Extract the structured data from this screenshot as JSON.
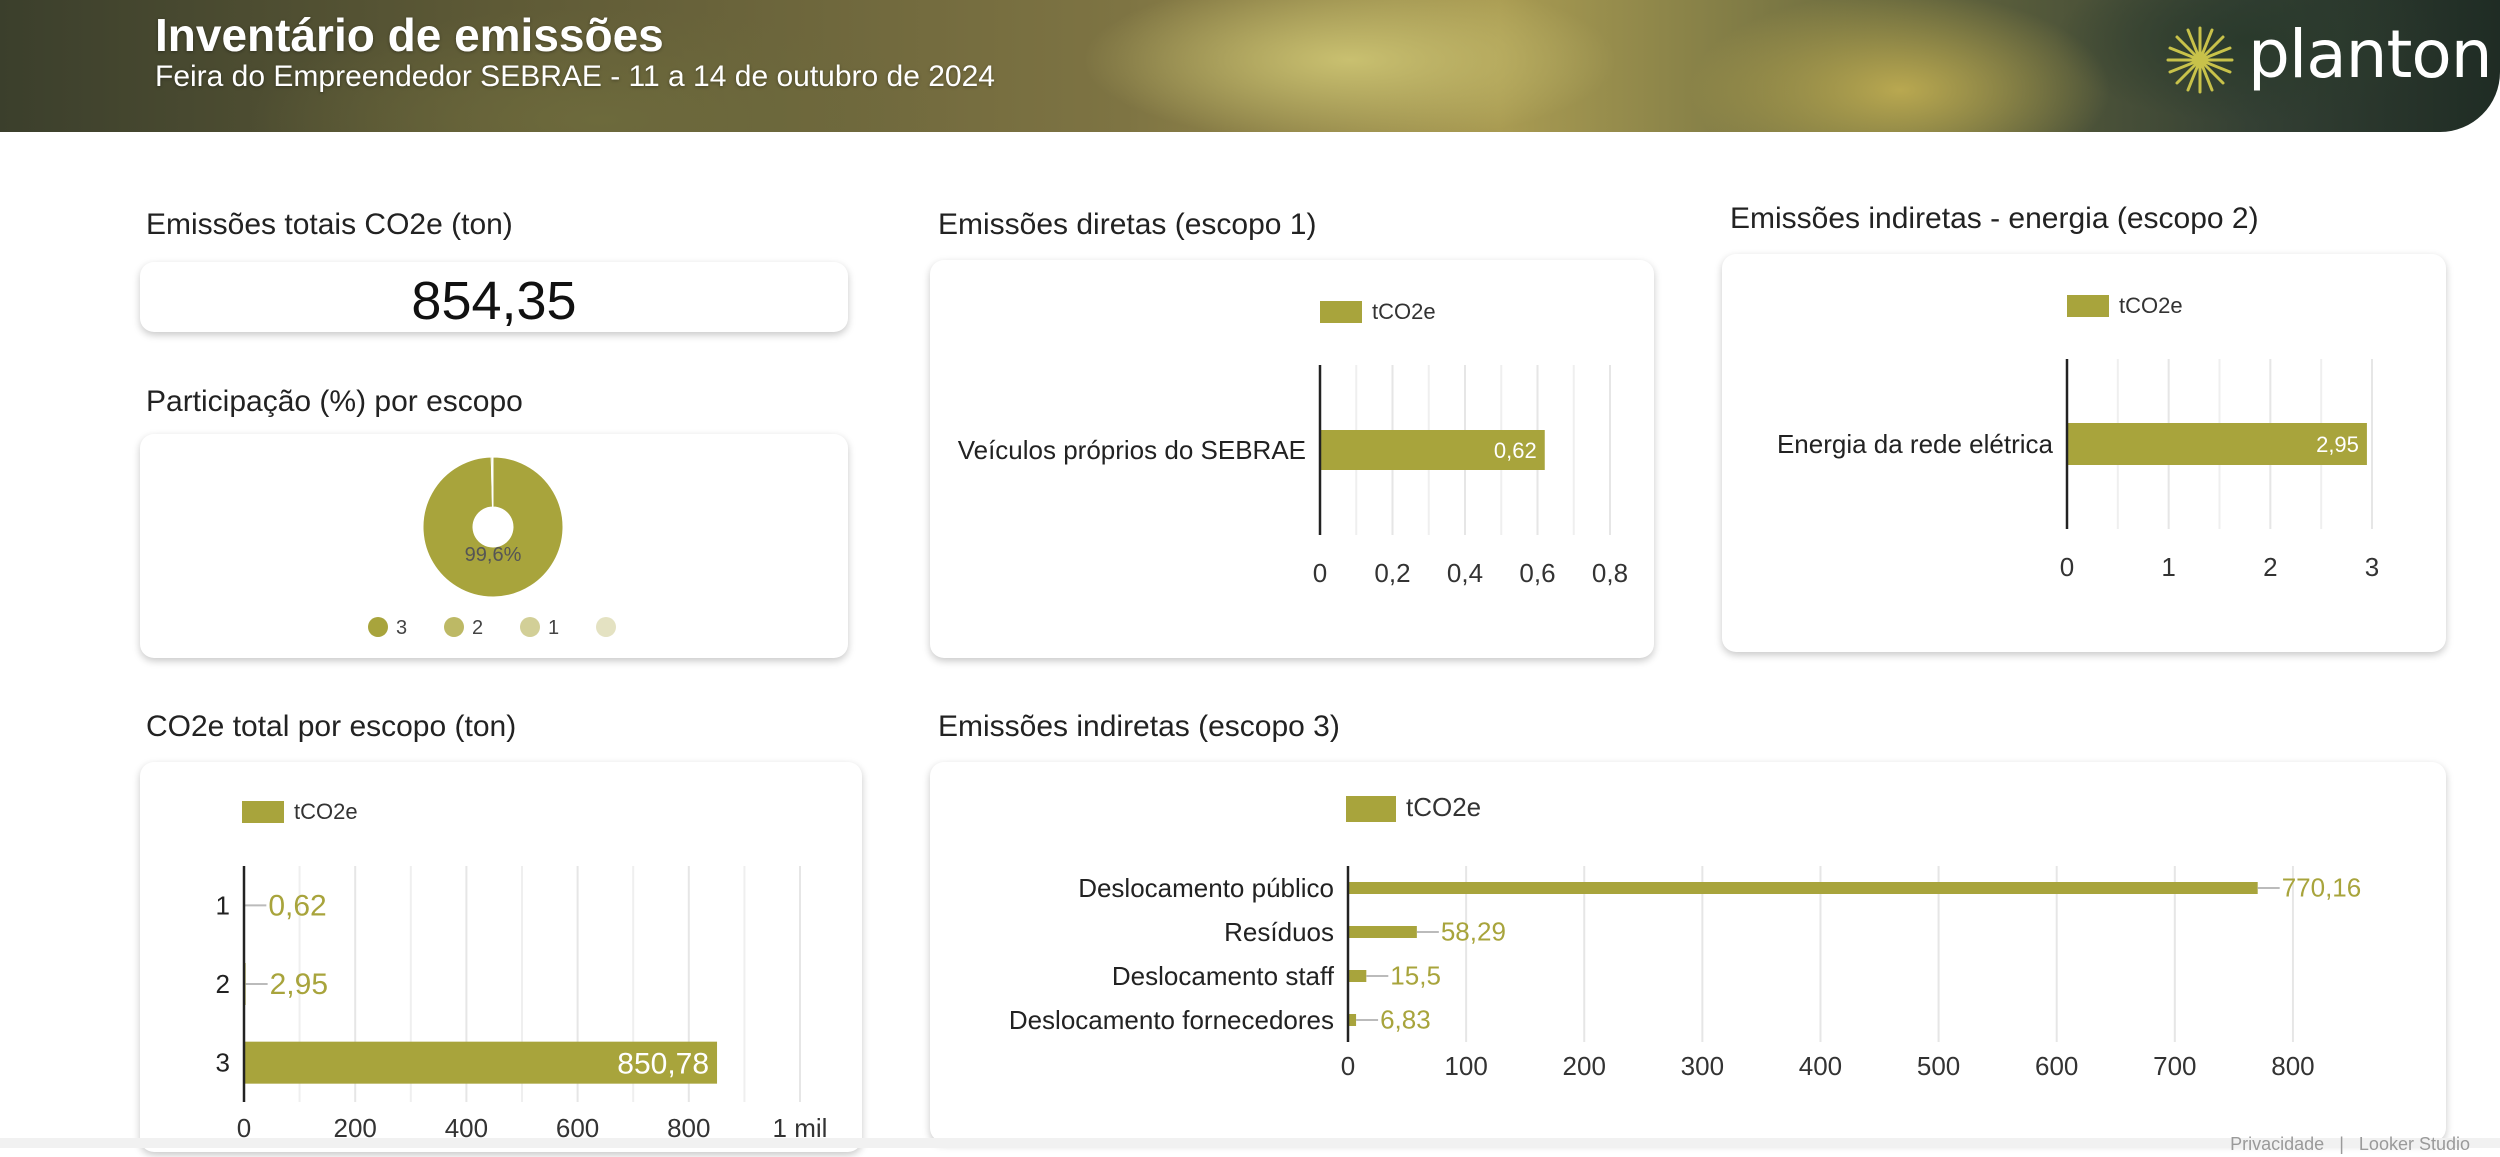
{
  "header": {
    "title": "Inventário de emissões",
    "subtitle": "Feira do Empreendedor SEBRAE  -  11 a 14 de outubro de 2024",
    "logo_text": "planton"
  },
  "colors": {
    "bar": "#a8a43c",
    "bar_dark": "#a6a23a",
    "label_outside": "#a8a43c"
  },
  "total": {
    "title": "Emissões totais CO2e (ton)",
    "value": "854,35"
  },
  "participation": {
    "title": "Participação (%) por escopo",
    "center_label": "99,6%",
    "slices": [
      {
        "label": "3",
        "value": 99.6,
        "color": "#a8a43c"
      },
      {
        "label": "2",
        "value": 0.3,
        "color": "#bdb965"
      },
      {
        "label": "1",
        "value": 0.1,
        "color": "#d2cf97"
      },
      {
        "label": "",
        "value": 0,
        "color": "#e4e2c2"
      }
    ]
  },
  "scope1": {
    "title": "Emissões diretas (escopo 1)"
  },
  "scope2": {
    "title": "Emissões indiretas - energia (escopo 2)"
  },
  "scope_total": {
    "title": "CO2e total por escopo (ton)"
  },
  "scope3": {
    "title": "Emissões indiretas (escopo 3)"
  },
  "footer": {
    "privacy": "Privacidade",
    "brand": "Looker Studio"
  },
  "chart_data": [
    {
      "id": "scope1",
      "type": "bar",
      "orientation": "horizontal",
      "series": [
        {
          "name": "tCO2e",
          "values": [
            0.62
          ]
        }
      ],
      "categories": [
        "Veículos próprios do SEBRAE"
      ],
      "data_labels": [
        "0,62"
      ],
      "xlim": [
        0,
        0.8
      ],
      "ticks": [
        0,
        0.2,
        0.4,
        0.6,
        0.8
      ],
      "tick_labels": [
        "0",
        "0,2",
        "0,4",
        "0,6",
        "0,8"
      ],
      "label_inside": true,
      "legend": "top"
    },
    {
      "id": "scope2",
      "type": "bar",
      "orientation": "horizontal",
      "series": [
        {
          "name": "tCO2e",
          "values": [
            2.95
          ]
        }
      ],
      "categories": [
        "Energia da rede elétrica"
      ],
      "data_labels": [
        "2,95"
      ],
      "xlim": [
        0,
        3
      ],
      "ticks": [
        0,
        1,
        2,
        3
      ],
      "tick_labels": [
        "0",
        "1",
        "2",
        "3"
      ],
      "label_inside": true,
      "legend": "top"
    },
    {
      "id": "scope_total",
      "type": "bar",
      "orientation": "horizontal",
      "series": [
        {
          "name": "tCO2e",
          "values": [
            0.62,
            2.95,
            850.78
          ]
        }
      ],
      "categories": [
        "1",
        "2",
        "3"
      ],
      "data_labels": [
        "0,62",
        "2,95",
        "850,78"
      ],
      "xlim": [
        0,
        1000
      ],
      "ticks": [
        0,
        200,
        400,
        600,
        800,
        1000
      ],
      "tick_labels": [
        "0",
        "200",
        "400",
        "600",
        "800",
        "1 mil"
      ],
      "legend": "top"
    },
    {
      "id": "scope3",
      "type": "bar",
      "orientation": "horizontal",
      "series": [
        {
          "name": "tCO2e",
          "values": [
            770.16,
            58.29,
            15.5,
            6.83
          ]
        }
      ],
      "categories": [
        "Deslocamento público",
        "Resíduos",
        "Deslocamento staff",
        "Deslocamento fornecedores"
      ],
      "data_labels": [
        "770,16",
        "58,29",
        "15,5",
        "6,83"
      ],
      "xlim": [
        0,
        850
      ],
      "ticks": [
        0,
        100,
        200,
        300,
        400,
        500,
        600,
        700,
        800
      ],
      "tick_labels": [
        "0",
        "100",
        "200",
        "300",
        "400",
        "500",
        "600",
        "700",
        "800"
      ],
      "legend": "top"
    }
  ]
}
